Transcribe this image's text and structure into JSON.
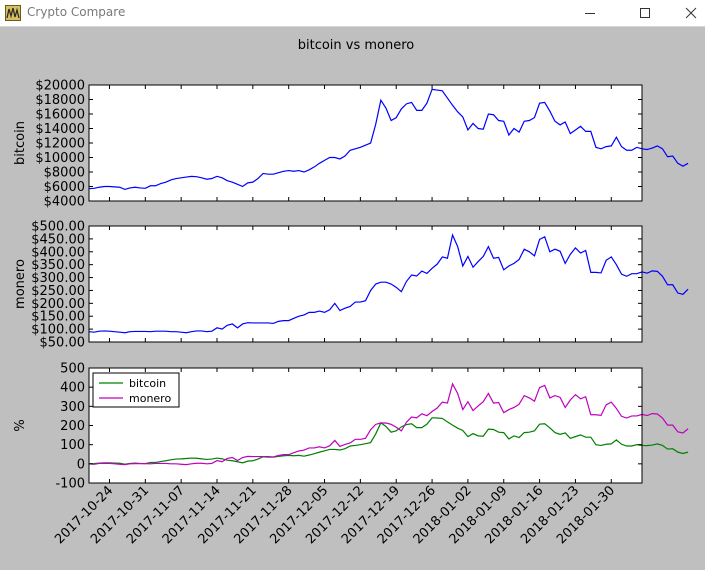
{
  "window": {
    "title": "Crypto Compare",
    "icons": {
      "app": "app-icon",
      "minimize": "minimize-icon",
      "maximize": "maximize-icon",
      "close": "close-icon"
    }
  },
  "figure": {
    "title": "bitcoin vs monero",
    "colors": {
      "bitcoin_panel": "#0000ff",
      "monero_panel": "#0000ff",
      "bitcoin_pct": "#008000",
      "monero_pct": "#bf00bf",
      "background": "#bfbfbf"
    }
  },
  "chart_data": [
    {
      "type": "line",
      "ylabel": "bitcoin",
      "ylim": [
        4000,
        20000
      ],
      "yticks": [
        4000,
        6000,
        8000,
        10000,
        12000,
        14000,
        16000,
        18000,
        20000
      ],
      "ytick_labels": [
        "$4000",
        "$6000",
        "$8000",
        "$10000",
        "$12000",
        "$14000",
        "$16000",
        "$18000",
        "$20000"
      ],
      "x_start": "2017-10-20",
      "x_end": "2018-02-05",
      "x_step_days": 1,
      "series": [
        {
          "values": [
            5700,
            5750,
            5900,
            6000,
            6000,
            5950,
            5900,
            5600,
            5800,
            5900,
            5800,
            5750,
            6100,
            6100,
            6400,
            6600,
            6900,
            7100,
            7200,
            7300,
            7400,
            7350,
            7200,
            7000,
            7100,
            7400,
            7200,
            6800,
            6600,
            6300,
            6000,
            6500,
            6600,
            7100,
            7800,
            7700,
            7700,
            7900,
            8100,
            8200,
            8100,
            8200,
            8000,
            8300,
            8700,
            9200,
            9600,
            10000,
            10000,
            9800,
            10200,
            11000,
            11200,
            11400,
            11700,
            12000,
            14600,
            17900,
            16800,
            15100,
            15500,
            16700,
            17400,
            17600,
            16500,
            16500,
            17500,
            19400,
            19300,
            19200,
            18200,
            17200,
            16300,
            15600,
            13800,
            14700,
            14000,
            13900,
            16000,
            15900,
            15100,
            15000,
            13100,
            14000,
            13500,
            15000,
            15100,
            15500,
            17500,
            17600,
            16400,
            15000,
            14500,
            14900,
            13300,
            13800,
            14300,
            13600,
            13600,
            11400,
            11200,
            11500,
            11600,
            12800,
            11500,
            11000,
            11000,
            11400,
            11200,
            11100,
            11300,
            11600,
            11200,
            10100,
            10200,
            9200,
            8800,
            9200
          ]
        }
      ]
    },
    {
      "type": "line",
      "ylabel": "monero",
      "ylim": [
        50,
        500
      ],
      "yticks": [
        50,
        100,
        150,
        200,
        250,
        300,
        350,
        400,
        450,
        500
      ],
      "ytick_labels": [
        "$50.00",
        "$100.00",
        "$150.00",
        "$200.00",
        "$250.00",
        "$300.00",
        "$350.00",
        "$400.00",
        "$450.00",
        "$500.00"
      ],
      "x_start": "2017-10-20",
      "x_end": "2018-02-05",
      "x_step_days": 1,
      "series": [
        {
          "values": [
            90,
            88,
            92,
            93,
            92,
            90,
            88,
            86,
            90,
            91,
            91,
            91,
            90,
            92,
            92,
            92,
            90,
            90,
            88,
            86,
            90,
            93,
            93,
            90,
            92,
            105,
            100,
            115,
            120,
            105,
            120,
            125,
            124,
            124,
            124,
            124,
            122,
            130,
            133,
            133,
            142,
            150,
            155,
            165,
            165,
            170,
            165,
            175,
            200,
            172,
            181,
            188,
            205,
            205,
            210,
            250,
            275,
            282,
            282,
            275,
            262,
            245,
            285,
            310,
            306,
            325,
            316,
            336,
            352,
            380,
            375,
            465,
            420,
            345,
            382,
            340,
            362,
            382,
            420,
            375,
            378,
            330,
            345,
            355,
            370,
            410,
            400,
            384,
            448,
            458,
            400,
            410,
            402,
            355,
            390,
            415,
            395,
            405,
            320,
            320,
            318,
            367,
            380,
            350,
            313,
            305,
            315,
            315,
            322,
            317,
            326,
            324,
            305,
            272,
            272,
            240,
            235,
            255
          ]
        }
      ]
    },
    {
      "type": "line",
      "ylabel": "%",
      "ylim": [
        -100,
        500
      ],
      "yticks": [
        -100,
        0,
        100,
        200,
        300,
        400,
        500
      ],
      "x_start": "2017-10-20",
      "x_end": "2018-02-05",
      "x_step_days": 1,
      "xtick_labels": [
        "2017-10-24",
        "2017-10-31",
        "2017-11-07",
        "2017-11-14",
        "2017-11-21",
        "2017-11-28",
        "2017-12-05",
        "2017-12-12",
        "2017-12-19",
        "2017-12-26",
        "2018-01-02",
        "2018-01-09",
        "2018-01-16",
        "2018-01-23",
        "2018-01-30"
      ],
      "legend": "upper-left",
      "series": [
        {
          "name": "bitcoin",
          "values": [
            0,
            1,
            4,
            5,
            5,
            4,
            3,
            -2,
            2,
            4,
            2,
            1,
            7,
            7,
            12,
            16,
            21,
            25,
            26,
            28,
            30,
            29,
            26,
            23,
            25,
            30,
            26,
            19,
            16,
            11,
            5,
            14,
            16,
            25,
            37,
            35,
            35,
            39,
            42,
            44,
            42,
            44,
            40,
            46,
            53,
            61,
            68,
            75,
            75,
            72,
            79,
            93,
            96,
            100,
            105,
            111,
            156,
            214,
            195,
            165,
            172,
            193,
            205,
            209,
            189,
            189,
            207,
            240,
            239,
            237,
            219,
            202,
            186,
            174,
            142,
            158,
            146,
            144,
            181,
            179,
            165,
            163,
            130,
            146,
            137,
            163,
            165,
            172,
            207,
            209,
            188,
            163,
            154,
            161,
            133,
            142,
            151,
            139,
            139,
            100,
            96,
            102,
            104,
            125,
            102,
            93,
            93,
            100,
            96,
            95,
            98,
            104,
            96,
            77,
            79,
            61,
            54,
            61
          ]
        },
        {
          "name": "monero",
          "values": [
            0,
            -2,
            2,
            3,
            2,
            0,
            -2,
            -4,
            0,
            1,
            1,
            1,
            0,
            2,
            2,
            2,
            0,
            0,
            -2,
            -4,
            0,
            3,
            3,
            0,
            2,
            17,
            11,
            28,
            33,
            17,
            33,
            39,
            38,
            38,
            38,
            38,
            36,
            44,
            48,
            48,
            58,
            67,
            72,
            83,
            83,
            89,
            83,
            94,
            122,
            91,
            101,
            109,
            128,
            128,
            133,
            178,
            206,
            213,
            213,
            206,
            191,
            172,
            217,
            244,
            240,
            261,
            251,
            273,
            291,
            322,
            317,
            417,
            367,
            283,
            324,
            278,
            302,
            324,
            367,
            317,
            320,
            267,
            283,
            294,
            311,
            356,
            344,
            327,
            398,
            409,
            344,
            356,
            347,
            294,
            333,
            361,
            339,
            350,
            256,
            256,
            253,
            308,
            322,
            289,
            248,
            239,
            250,
            250,
            258,
            252,
            262,
            260,
            239,
            202,
            202,
            167,
            161,
            183
          ]
        }
      ]
    }
  ]
}
